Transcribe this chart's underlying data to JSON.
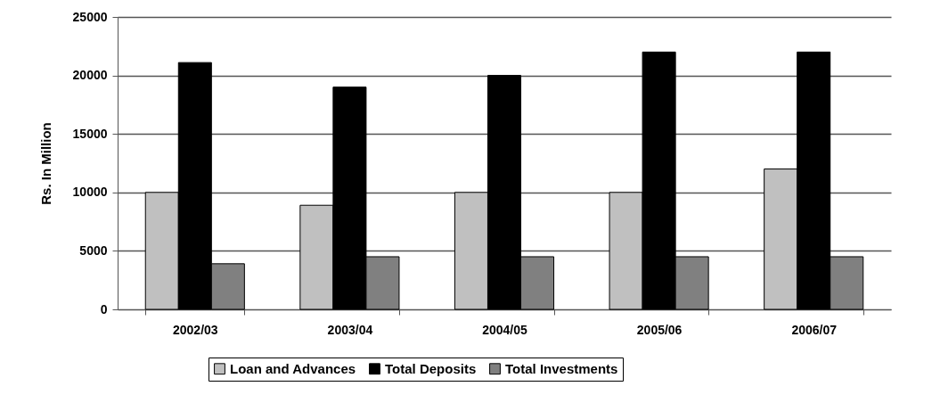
{
  "chart_data": {
    "type": "bar",
    "ylabel": "Rs. In Million",
    "categories": [
      "2002/03",
      "2003/04",
      "2004/05",
      "2005/06",
      "2006/07"
    ],
    "series": [
      {
        "name": "Loan and Advances",
        "color": "#c0c0c0",
        "values": [
          10000,
          8900,
          10000,
          10000,
          12000
        ]
      },
      {
        "name": "Total Deposits",
        "color": "#000000",
        "values": [
          21100,
          19000,
          20000,
          22000,
          22000
        ]
      },
      {
        "name": "Total Investments",
        "color": "#808080",
        "values": [
          3900,
          4500,
          4500,
          4500,
          4500
        ]
      }
    ],
    "ylim": [
      0,
      25000
    ],
    "yticks": [
      0,
      5000,
      10000,
      15000,
      20000,
      25000
    ],
    "grid": "y",
    "legend": "bottom"
  }
}
